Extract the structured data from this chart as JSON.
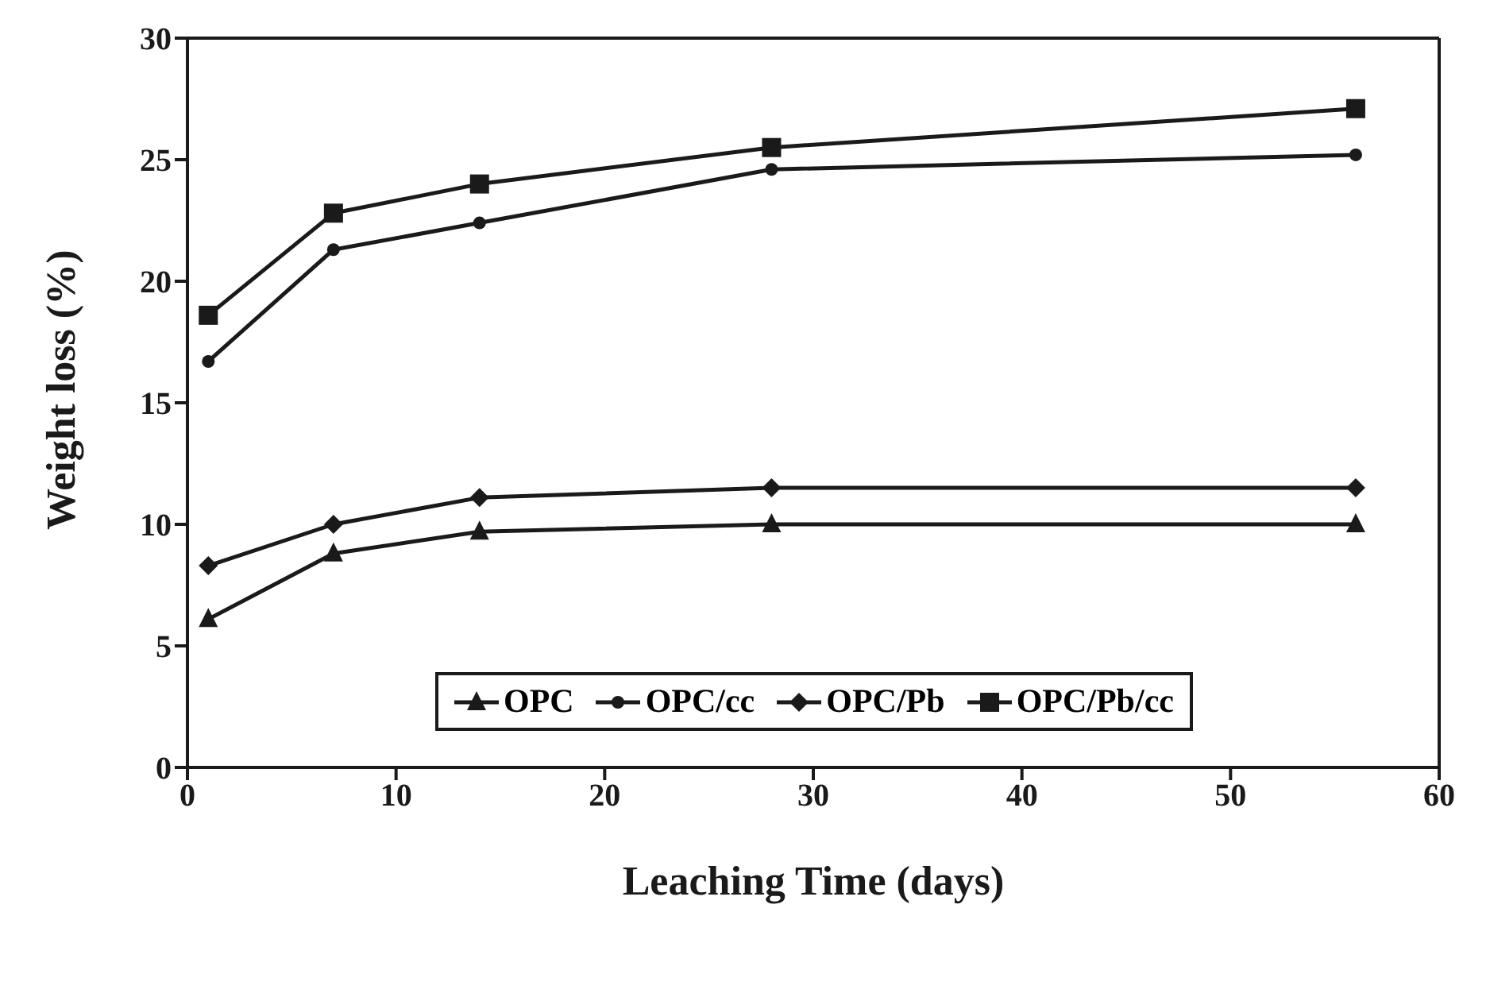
{
  "chart_data": {
    "type": "line",
    "xlabel": "Leaching Time (days)",
    "ylabel": "Weight loss (%)",
    "x": [
      1,
      7,
      14,
      28,
      56
    ],
    "xlim": [
      0,
      60
    ],
    "xticks": [
      0,
      10,
      20,
      30,
      40,
      50,
      60
    ],
    "ylim": [
      0,
      30
    ],
    "yticks": [
      0,
      5,
      10,
      15,
      20,
      25,
      30
    ],
    "grid": false,
    "legend": "bottom",
    "line_style": "solid",
    "series": [
      {
        "name": "OPC",
        "color": "#1a1a1a",
        "marker": "triangle",
        "values": [
          6.1,
          8.8,
          9.7,
          10.0,
          10.0
        ]
      },
      {
        "name": "OPC/cc",
        "color": "#1a1a1a",
        "marker": "circle",
        "values": [
          16.7,
          21.3,
          22.4,
          24.6,
          25.2
        ]
      },
      {
        "name": "OPC/Pb",
        "color": "#1a1a1a",
        "marker": "diamond",
        "values": [
          8.3,
          10.0,
          11.1,
          11.5,
          11.5
        ]
      },
      {
        "name": "OPC/Pb/cc",
        "color": "#1a1a1a",
        "marker": "square",
        "values": [
          18.6,
          22.8,
          24.0,
          25.5,
          27.1
        ]
      }
    ]
  }
}
